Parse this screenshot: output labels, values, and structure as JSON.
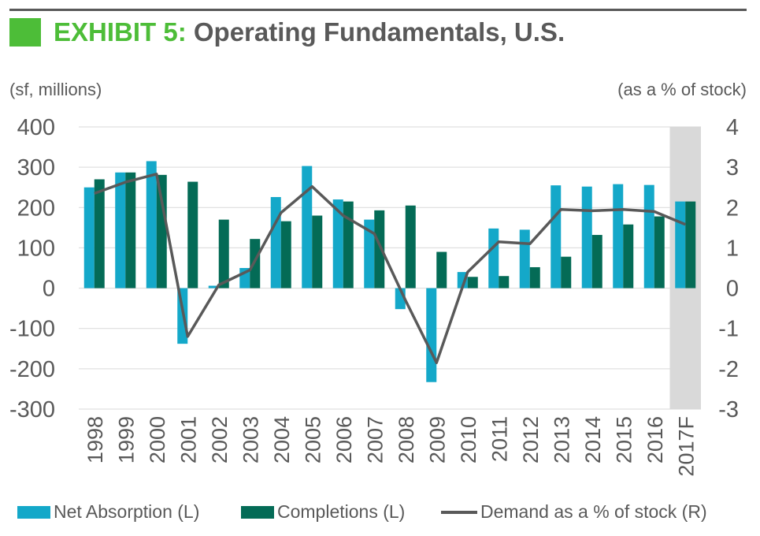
{
  "title": {
    "exhibit": "EXHIBIT 5:",
    "main": "Operating Fundamentals, U.S."
  },
  "units": {
    "left": "(sf, millions)",
    "right": "(as a % of stock)"
  },
  "colors": {
    "brand_green": "#4dbd38",
    "absorption": "#14a8c9",
    "completions": "#046b56",
    "demand": "#595959",
    "forecast_shade": "#d9d9d9",
    "gridline": "#d9d9d9"
  },
  "chart_data": {
    "type": "bar",
    "categories": [
      "1998",
      "1999",
      "2000",
      "2001",
      "2002",
      "2003",
      "2004",
      "2005",
      "2006",
      "2007",
      "2008",
      "2009",
      "2010",
      "2011",
      "2012",
      "2013",
      "2014",
      "2015",
      "2016",
      "2017F"
    ],
    "series": [
      {
        "name": "Net Absorption (L)",
        "kind": "bar",
        "axis": "left",
        "values": [
          250,
          287,
          315,
          -138,
          6,
          50,
          226,
          303,
          220,
          170,
          -52,
          -233,
          40,
          148,
          145,
          255,
          252,
          258,
          256,
          215
        ]
      },
      {
        "name": "Completions (L)",
        "kind": "bar",
        "axis": "left",
        "values": [
          270,
          287,
          281,
          264,
          170,
          122,
          166,
          180,
          215,
          193,
          205,
          90,
          28,
          30,
          52,
          78,
          132,
          158,
          178,
          215
        ]
      },
      {
        "name": "Demand as a % of stock (R)",
        "kind": "line",
        "axis": "right",
        "values": [
          2.35,
          2.63,
          2.83,
          -1.2,
          0.08,
          0.45,
          1.87,
          2.52,
          1.8,
          1.35,
          -0.3,
          -1.85,
          0.4,
          1.15,
          1.1,
          1.95,
          1.92,
          1.95,
          1.9,
          1.58
        ]
      }
    ],
    "y_left": {
      "min": -300,
      "max": 400,
      "ticks": [
        -300,
        -200,
        -100,
        0,
        100,
        200,
        300,
        400
      ]
    },
    "y_right": {
      "min": -3,
      "max": 4,
      "ticks": [
        -3,
        -2,
        -1,
        0,
        1,
        2,
        3,
        4
      ]
    },
    "forecast_category": "2017F",
    "grid": true,
    "legend_position": "bottom"
  }
}
